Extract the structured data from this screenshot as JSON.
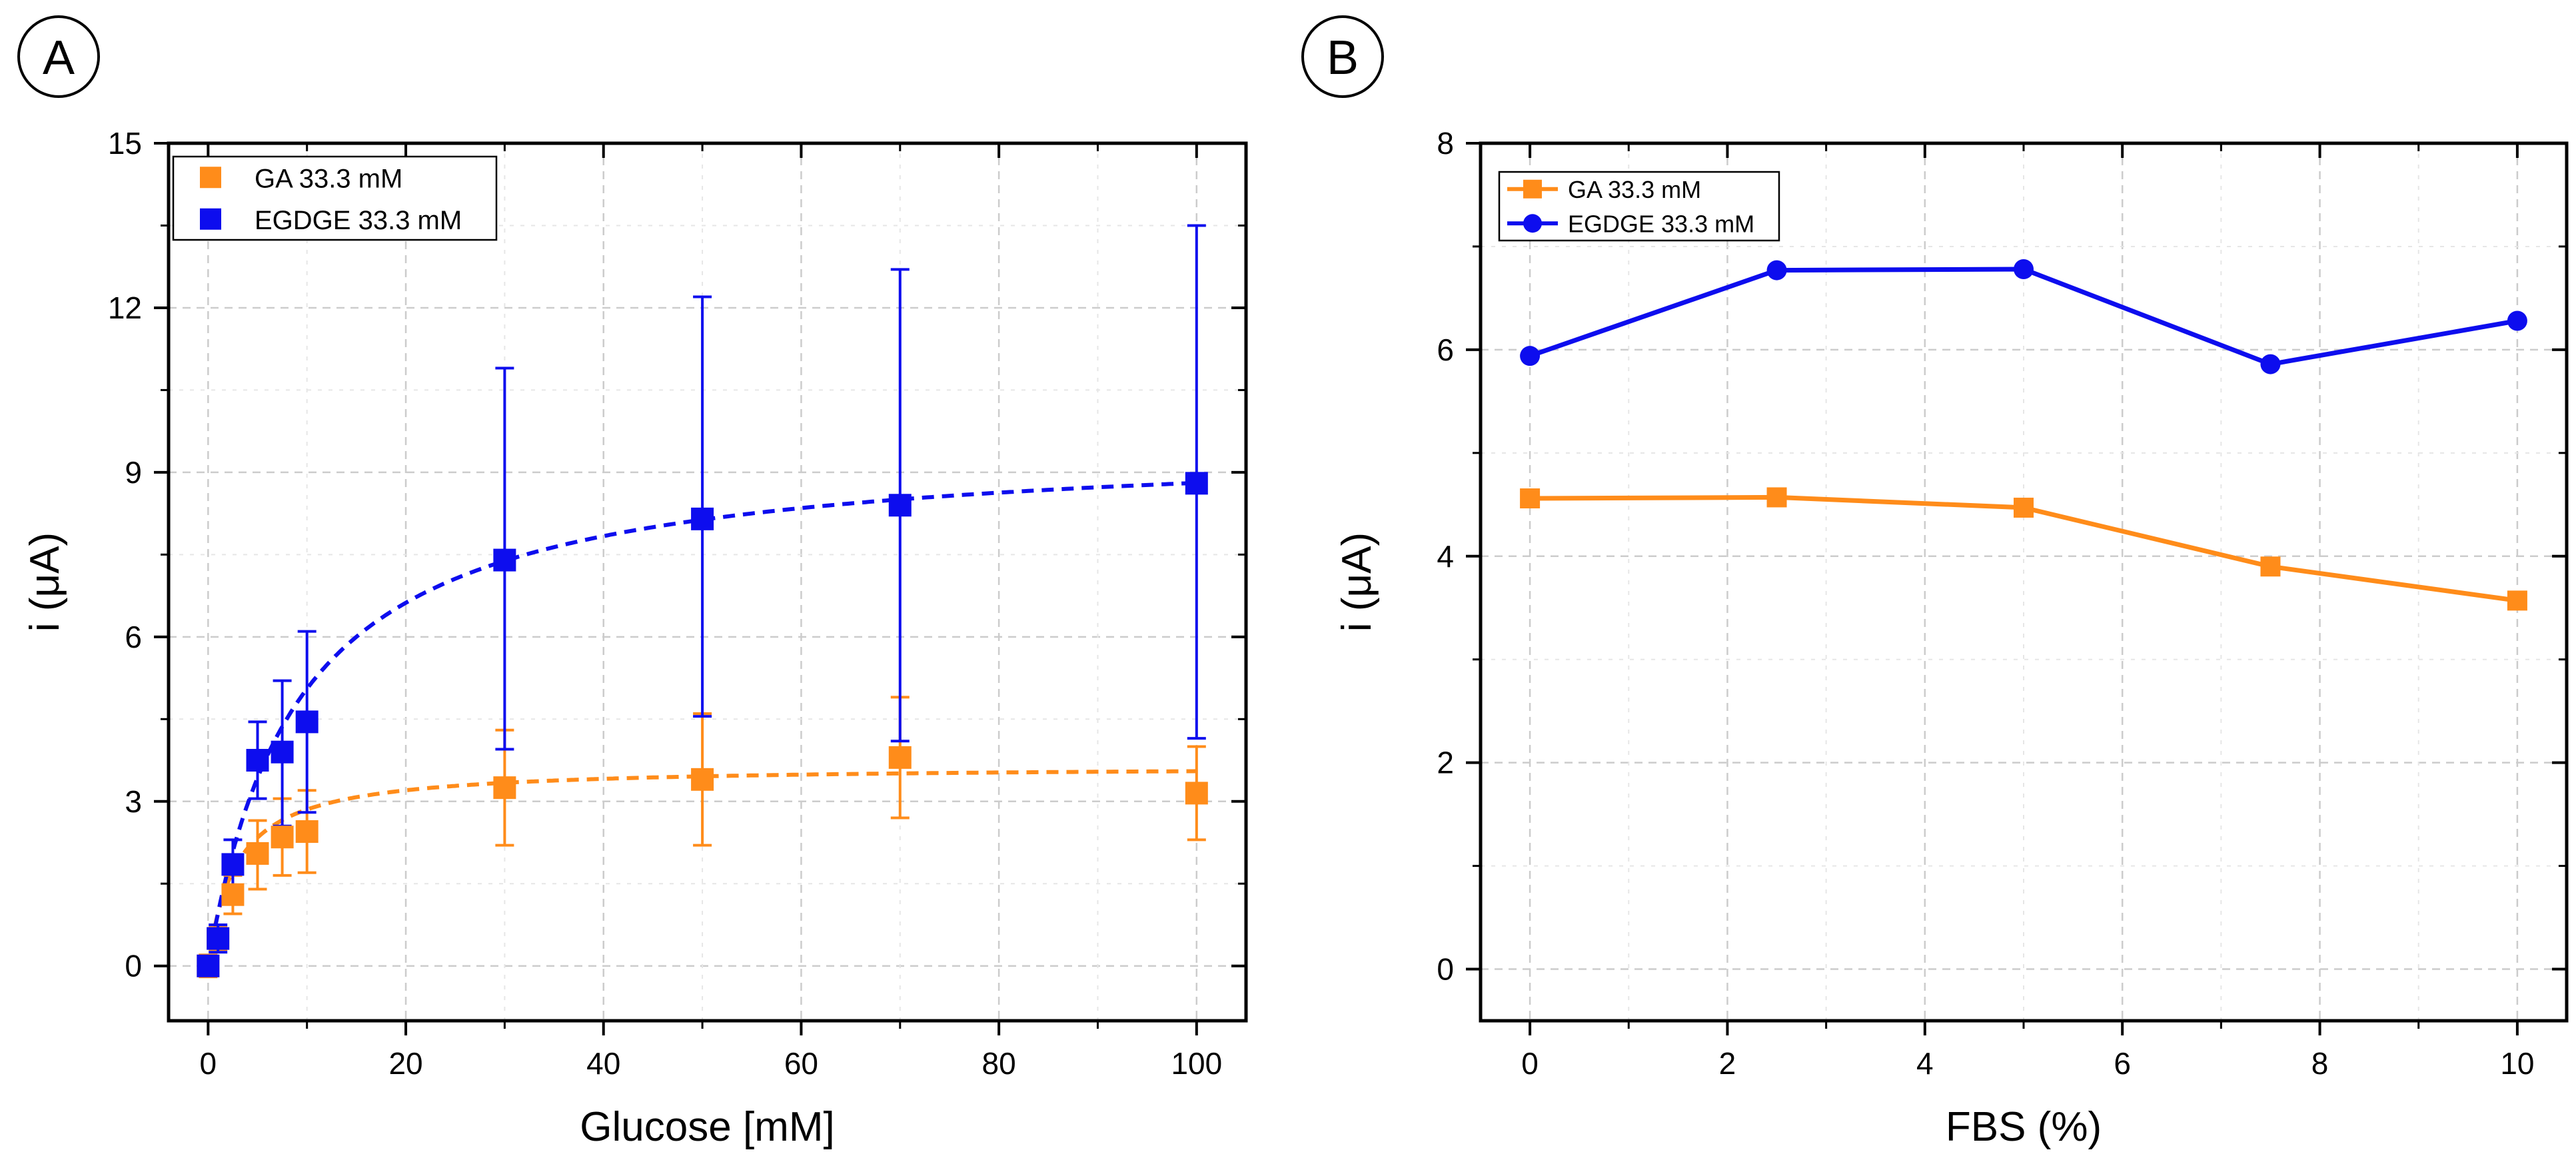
{
  "chart_data": [
    {
      "panel_label": "A",
      "type": "scatter",
      "xlabel": "Glucose [mM]",
      "ylabel": "i (μA)",
      "xlim": [
        -4,
        105
      ],
      "ylim": [
        -1,
        15
      ],
      "xticks": [
        0,
        20,
        40,
        60,
        80,
        100
      ],
      "yticks": [
        0,
        3,
        6,
        9,
        12,
        15
      ],
      "grid": true,
      "legend_position": "top-left",
      "series": [
        {
          "name": "GA 33.3 mM",
          "color": "#ff8c1a",
          "marker": "square",
          "x": [
            0,
            1,
            2.5,
            5,
            7.5,
            10,
            30,
            50,
            70,
            100
          ],
          "y": [
            0.0,
            0.5,
            1.3,
            2.05,
            2.35,
            2.45,
            3.25,
            3.4,
            3.8,
            3.15
          ],
          "err_low": [
            0.2,
            0.2,
            0.35,
            0.65,
            0.7,
            0.75,
            1.05,
            1.2,
            1.1,
            0.85
          ],
          "err_high": [
            0.2,
            0.2,
            0.35,
            0.6,
            0.7,
            0.75,
            1.05,
            1.2,
            1.1,
            0.85
          ],
          "fit": {
            "type": "michaelis-menten",
            "imax": 3.65,
            "km": 2.8,
            "style": "dashed"
          }
        },
        {
          "name": "EGDGE 33.3 mM",
          "color": "#0d0dee",
          "marker": "square",
          "x": [
            0,
            1,
            2.5,
            5,
            7.5,
            10,
            30,
            50,
            70,
            100
          ],
          "y": [
            0.0,
            0.5,
            1.85,
            3.75,
            3.9,
            4.45,
            7.4,
            8.15,
            8.4,
            8.8
          ],
          "err_low": [
            0.15,
            0.25,
            0.45,
            0.7,
            1.35,
            1.65,
            3.45,
            3.6,
            4.3,
            4.65
          ],
          "err_high": [
            0.15,
            0.25,
            0.45,
            0.7,
            1.3,
            1.65,
            3.5,
            4.05,
            4.3,
            4.7
          ],
          "fit": {
            "type": "michaelis-menten",
            "imax": 9.6,
            "km": 9.0,
            "style": "dashed"
          }
        }
      ]
    },
    {
      "panel_label": "B",
      "type": "line",
      "xlabel": "FBS (%)",
      "ylabel": "i (μA)",
      "xlim": [
        -0.5,
        10.5
      ],
      "ylim": [
        -0.5,
        8
      ],
      "xticks": [
        0,
        2,
        4,
        6,
        8,
        10
      ],
      "yticks": [
        0,
        2,
        4,
        6,
        8
      ],
      "grid": true,
      "legend_position": "top-left",
      "series": [
        {
          "name": "GA 33.3 mM",
          "color": "#ff8c1a",
          "marker": "square",
          "x": [
            0,
            2.5,
            5,
            7.5,
            10
          ],
          "y": [
            4.56,
            4.57,
            4.47,
            3.9,
            3.57
          ]
        },
        {
          "name": "EGDGE 33.3 mM",
          "color": "#0d0dee",
          "marker": "circle",
          "x": [
            0,
            2.5,
            5,
            7.5,
            10
          ],
          "y": [
            5.94,
            6.77,
            6.78,
            5.86,
            6.28
          ]
        }
      ]
    }
  ]
}
